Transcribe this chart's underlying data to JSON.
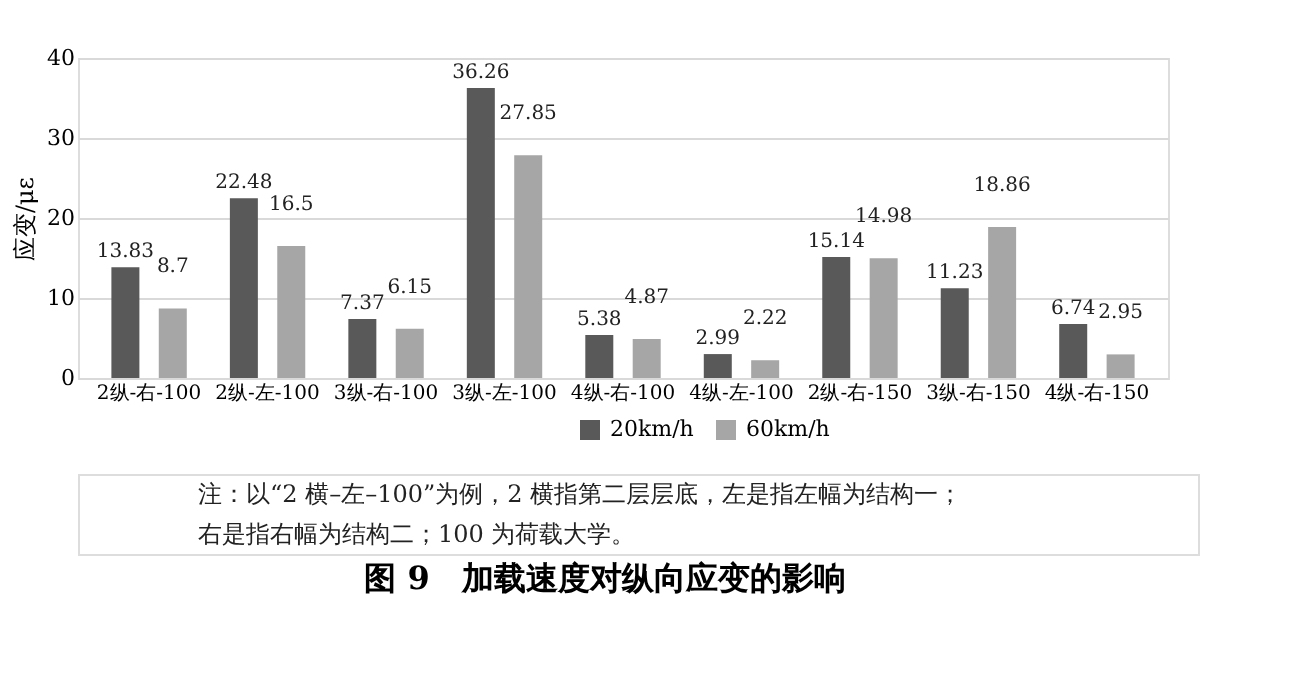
{
  "chart_data": {
    "type": "bar",
    "title": "图 9　加载速度对纵向应变的影响",
    "ylabel": "应变/με",
    "categories": [
      "2纵-右-100",
      "2纵-左-100",
      "3纵-右-100",
      "3纵-左-100",
      "4纵-右-100",
      "4纵-左-100",
      "2纵-右-150",
      "3纵-右-150",
      "4纵-右-150"
    ],
    "series": [
      {
        "name": "20km/h",
        "color": "#595959",
        "values": [
          13.83,
          22.48,
          7.37,
          36.26,
          5.38,
          2.99,
          15.14,
          11.23,
          6.74
        ]
      },
      {
        "name": "60km/h",
        "color": "#a6a6a6",
        "values": [
          8.7,
          16.5,
          6.15,
          27.85,
          4.87,
          2.22,
          14.98,
          18.86,
          2.95
        ]
      }
    ],
    "ylim": [
      0,
      40
    ],
    "yticks": [
      0,
      10,
      20,
      30,
      40
    ],
    "grid": "y",
    "legend": "bottom",
    "data_labels": true,
    "annotations": [
      "注：以“2 横–左–100”为例，2 横指第二层层底，左是指左幅为结构一；",
      "右是指右幅为结构二；100 为荷载大学。"
    ]
  }
}
